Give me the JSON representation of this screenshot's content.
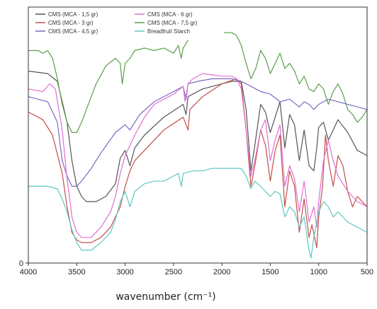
{
  "chart_data": {
    "type": "line",
    "xlabel": "wavenumber (cm⁻¹)",
    "ylabel": "",
    "xlim": [
      4000,
      500
    ],
    "x_reversed": true,
    "xticks": [
      "4000",
      "3500",
      "3000",
      "2500",
      "2000",
      "1500",
      "1000",
      "500"
    ],
    "xtick_values": [
      4000,
      3500,
      3000,
      2500,
      2000,
      1500,
      1000,
      500
    ],
    "yticks": [
      "0"
    ],
    "ytick_values": [
      0
    ],
    "ylim": [
      0,
      100
    ],
    "grid": false,
    "legend_position": "top-left",
    "series": [
      {
        "name": "CMS (MCA - 1,5 gr)",
        "color": "#555555",
        "points": [
          [
            4000,
            75
          ],
          [
            3800,
            74
          ],
          [
            3700,
            71
          ],
          [
            3600,
            55
          ],
          [
            3550,
            40
          ],
          [
            3500,
            30
          ],
          [
            3450,
            26
          ],
          [
            3400,
            24
          ],
          [
            3300,
            24
          ],
          [
            3200,
            26
          ],
          [
            3100,
            31
          ],
          [
            3050,
            41
          ],
          [
            3000,
            44
          ],
          [
            2950,
            38
          ],
          [
            2900,
            45
          ],
          [
            2800,
            50
          ],
          [
            2600,
            57
          ],
          [
            2400,
            62
          ],
          [
            2370,
            58
          ],
          [
            2350,
            65
          ],
          [
            2200,
            68
          ],
          [
            2000,
            70
          ],
          [
            1900,
            71
          ],
          [
            1800,
            71
          ],
          [
            1750,
            60
          ],
          [
            1700,
            36
          ],
          [
            1660,
            46
          ],
          [
            1600,
            62
          ],
          [
            1550,
            59
          ],
          [
            1500,
            51
          ],
          [
            1450,
            57
          ],
          [
            1400,
            63
          ],
          [
            1350,
            45
          ],
          [
            1300,
            58
          ],
          [
            1250,
            54
          ],
          [
            1200,
            40
          ],
          [
            1150,
            52
          ],
          [
            1100,
            38
          ],
          [
            1050,
            36
          ],
          [
            1020,
            45
          ],
          [
            1000,
            53
          ],
          [
            950,
            55
          ],
          [
            900,
            48
          ],
          [
            800,
            56
          ],
          [
            700,
            51
          ],
          [
            600,
            44
          ],
          [
            500,
            42
          ]
        ]
      },
      {
        "name": "CMS (MCA -  3 gr)",
        "color": "#c0504d",
        "points": [
          [
            4000,
            59
          ],
          [
            3850,
            56
          ],
          [
            3750,
            50
          ],
          [
            3650,
            35
          ],
          [
            3600,
            22
          ],
          [
            3550,
            12
          ],
          [
            3500,
            9
          ],
          [
            3450,
            8
          ],
          [
            3350,
            8
          ],
          [
            3250,
            10
          ],
          [
            3150,
            14
          ],
          [
            3050,
            22
          ],
          [
            3000,
            30
          ],
          [
            2950,
            36
          ],
          [
            2900,
            40
          ],
          [
            2800,
            44
          ],
          [
            2600,
            52
          ],
          [
            2400,
            57
          ],
          [
            2350,
            52
          ],
          [
            2330,
            60
          ],
          [
            2200,
            65
          ],
          [
            2000,
            70
          ],
          [
            1850,
            72
          ],
          [
            1800,
            70
          ],
          [
            1750,
            52
          ],
          [
            1700,
            30
          ],
          [
            1660,
            38
          ],
          [
            1600,
            52
          ],
          [
            1550,
            46
          ],
          [
            1500,
            32
          ],
          [
            1450,
            44
          ],
          [
            1400,
            50
          ],
          [
            1350,
            22
          ],
          [
            1300,
            36
          ],
          [
            1250,
            30
          ],
          [
            1200,
            12
          ],
          [
            1150,
            25
          ],
          [
            1100,
            10
          ],
          [
            1070,
            15
          ],
          [
            1020,
            6
          ],
          [
            1000,
            18
          ],
          [
            960,
            30
          ],
          [
            930,
            50
          ],
          [
            900,
            40
          ],
          [
            850,
            30
          ],
          [
            800,
            42
          ],
          [
            750,
            38
          ],
          [
            700,
            28
          ],
          [
            650,
            22
          ],
          [
            600,
            26
          ],
          [
            500,
            22
          ]
        ]
      },
      {
        "name": "CMS (MCA - 4,5 gr)",
        "color": "#7b68c8",
        "points": [
          [
            4000,
            65
          ],
          [
            3900,
            64
          ],
          [
            3800,
            63
          ],
          [
            3700,
            55
          ],
          [
            3650,
            40
          ],
          [
            3600,
            34
          ],
          [
            3550,
            30
          ],
          [
            3500,
            30
          ],
          [
            3450,
            32
          ],
          [
            3350,
            37
          ],
          [
            3250,
            43
          ],
          [
            3100,
            51
          ],
          [
            3000,
            54
          ],
          [
            2950,
            52
          ],
          [
            2850,
            58
          ],
          [
            2700,
            63
          ],
          [
            2500,
            67
          ],
          [
            2400,
            69
          ],
          [
            2370,
            64
          ],
          [
            2350,
            70
          ],
          [
            2250,
            71
          ],
          [
            2100,
            72
          ],
          [
            1900,
            72
          ],
          [
            1800,
            71
          ],
          [
            1700,
            69
          ],
          [
            1600,
            67
          ],
          [
            1500,
            66
          ],
          [
            1400,
            63
          ],
          [
            1300,
            64
          ],
          [
            1200,
            61
          ],
          [
            1150,
            63
          ],
          [
            1100,
            62
          ],
          [
            1050,
            60
          ],
          [
            1000,
            62
          ],
          [
            950,
            63
          ],
          [
            900,
            64
          ],
          [
            800,
            63
          ],
          [
            700,
            62
          ],
          [
            600,
            61
          ],
          [
            500,
            60
          ]
        ]
      },
      {
        "name": "CMS (MCA - 6 gr)",
        "color": "#e070d0",
        "points": [
          [
            4000,
            68
          ],
          [
            3850,
            67
          ],
          [
            3780,
            70
          ],
          [
            3720,
            68
          ],
          [
            3650,
            52
          ],
          [
            3600,
            33
          ],
          [
            3550,
            18
          ],
          [
            3500,
            12
          ],
          [
            3450,
            10
          ],
          [
            3350,
            10
          ],
          [
            3250,
            14
          ],
          [
            3150,
            20
          ],
          [
            3100,
            26
          ],
          [
            3050,
            35
          ],
          [
            3000,
            42
          ],
          [
            2900,
            50
          ],
          [
            2800,
            57
          ],
          [
            2700,
            62
          ],
          [
            2600,
            64
          ],
          [
            2500,
            66
          ],
          [
            2400,
            69
          ],
          [
            2380,
            63
          ],
          [
            2350,
            70
          ],
          [
            2300,
            72
          ],
          [
            2200,
            74
          ],
          [
            2000,
            73
          ],
          [
            1900,
            73
          ],
          [
            1850,
            72
          ],
          [
            1800,
            68
          ],
          [
            1750,
            52
          ],
          [
            1700,
            34
          ],
          [
            1660,
            40
          ],
          [
            1600,
            52
          ],
          [
            1550,
            56
          ],
          [
            1500,
            40
          ],
          [
            1450,
            48
          ],
          [
            1400,
            54
          ],
          [
            1350,
            30
          ],
          [
            1300,
            38
          ],
          [
            1250,
            33
          ],
          [
            1200,
            20
          ],
          [
            1150,
            32
          ],
          [
            1100,
            16
          ],
          [
            1050,
            22
          ],
          [
            1020,
            14
          ],
          [
            1000,
            24
          ],
          [
            950,
            40
          ],
          [
            900,
            48
          ],
          [
            850,
            40
          ],
          [
            800,
            34
          ],
          [
            700,
            28
          ],
          [
            600,
            24
          ],
          [
            500,
            22
          ]
        ]
      },
      {
        "name": "CMS (MCA - 7,5 gr)",
        "color": "#5a9e4b",
        "points": [
          [
            4000,
            83
          ],
          [
            3900,
            83
          ],
          [
            3850,
            82
          ],
          [
            3800,
            83
          ],
          [
            3750,
            80
          ],
          [
            3700,
            72
          ],
          [
            3650,
            62
          ],
          [
            3600,
            55
          ],
          [
            3550,
            51
          ],
          [
            3500,
            51
          ],
          [
            3450,
            55
          ],
          [
            3400,
            60
          ],
          [
            3300,
            70
          ],
          [
            3200,
            77
          ],
          [
            3100,
            80
          ],
          [
            3050,
            78
          ],
          [
            3030,
            70
          ],
          [
            3000,
            78
          ],
          [
            2950,
            80
          ],
          [
            2900,
            83
          ],
          [
            2800,
            84
          ],
          [
            2700,
            83
          ],
          [
            2600,
            84
          ],
          [
            2500,
            82
          ],
          [
            2450,
            85
          ],
          [
            2420,
            80
          ],
          [
            2400,
            84
          ],
          [
            2350,
            87
          ],
          [
            2200,
            89
          ],
          [
            2000,
            90
          ],
          [
            1900,
            90
          ],
          [
            1850,
            89
          ],
          [
            1800,
            85
          ],
          [
            1750,
            78
          ],
          [
            1700,
            72
          ],
          [
            1650,
            76
          ],
          [
            1600,
            83
          ],
          [
            1550,
            80
          ],
          [
            1500,
            74
          ],
          [
            1450,
            78
          ],
          [
            1400,
            82
          ],
          [
            1350,
            76
          ],
          [
            1300,
            78
          ],
          [
            1250,
            75
          ],
          [
            1200,
            70
          ],
          [
            1150,
            73
          ],
          [
            1100,
            68
          ],
          [
            1050,
            67
          ],
          [
            1000,
            70
          ],
          [
            950,
            68
          ],
          [
            900,
            62
          ],
          [
            850,
            67
          ],
          [
            800,
            70
          ],
          [
            750,
            66
          ],
          [
            700,
            60
          ],
          [
            650,
            58
          ],
          [
            600,
            55
          ],
          [
            550,
            57
          ],
          [
            500,
            60
          ]
        ]
      },
      {
        "name": "Breadfruit Starch",
        "color": "#60c8c0",
        "points": [
          [
            4000,
            30
          ],
          [
            3900,
            30
          ],
          [
            3800,
            30
          ],
          [
            3700,
            29
          ],
          [
            3650,
            25
          ],
          [
            3600,
            20
          ],
          [
            3550,
            13
          ],
          [
            3500,
            8
          ],
          [
            3450,
            5
          ],
          [
            3350,
            5
          ],
          [
            3250,
            8
          ],
          [
            3150,
            12
          ],
          [
            3100,
            17
          ],
          [
            3050,
            24
          ],
          [
            3000,
            28
          ],
          [
            2950,
            22
          ],
          [
            2900,
            28
          ],
          [
            2800,
            31
          ],
          [
            2700,
            32
          ],
          [
            2600,
            32
          ],
          [
            2500,
            34
          ],
          [
            2450,
            35
          ],
          [
            2420,
            30
          ],
          [
            2400,
            35
          ],
          [
            2300,
            36
          ],
          [
            2200,
            36
          ],
          [
            2100,
            37
          ],
          [
            1900,
            37
          ],
          [
            1800,
            37
          ],
          [
            1750,
            34
          ],
          [
            1700,
            29
          ],
          [
            1660,
            32
          ],
          [
            1600,
            30
          ],
          [
            1550,
            28
          ],
          [
            1500,
            26
          ],
          [
            1450,
            28
          ],
          [
            1400,
            27
          ],
          [
            1350,
            18
          ],
          [
            1300,
            22
          ],
          [
            1250,
            20
          ],
          [
            1200,
            14
          ],
          [
            1150,
            18
          ],
          [
            1100,
            5
          ],
          [
            1080,
            2
          ],
          [
            1050,
            10
          ],
          [
            1000,
            20
          ],
          [
            950,
            24
          ],
          [
            900,
            22
          ],
          [
            850,
            18
          ],
          [
            800,
            20
          ],
          [
            700,
            16
          ],
          [
            600,
            14
          ],
          [
            500,
            12
          ]
        ]
      }
    ]
  }
}
